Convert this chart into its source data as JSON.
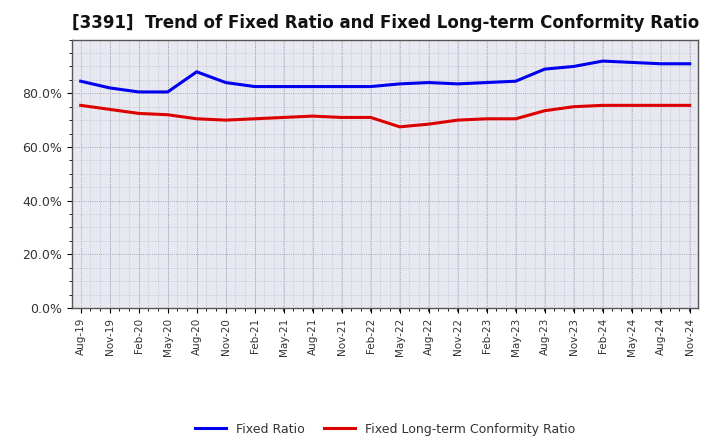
{
  "title": "[3391]  Trend of Fixed Ratio and Fixed Long-term Conformity Ratio",
  "x_labels": [
    "Aug-19",
    "Nov-19",
    "Feb-20",
    "May-20",
    "Aug-20",
    "Nov-20",
    "Feb-21",
    "May-21",
    "Aug-21",
    "Nov-21",
    "Feb-22",
    "May-22",
    "Aug-22",
    "Nov-22",
    "Feb-23",
    "May-23",
    "Aug-23",
    "Nov-23",
    "Feb-24",
    "May-24",
    "Aug-24",
    "Nov-24"
  ],
  "fixed_ratio": [
    84.5,
    82.0,
    80.5,
    80.5,
    88.0,
    84.0,
    82.5,
    82.5,
    82.5,
    82.5,
    82.5,
    83.5,
    84.0,
    83.5,
    84.0,
    84.5,
    89.0,
    90.0,
    92.0,
    91.5,
    91.0,
    91.0
  ],
  "fixed_lt_ratio": [
    75.5,
    74.0,
    72.5,
    72.0,
    70.5,
    70.0,
    70.5,
    71.0,
    71.5,
    71.0,
    71.0,
    67.5,
    68.5,
    70.0,
    70.5,
    70.5,
    73.5,
    75.0,
    75.5,
    75.5,
    75.5,
    75.5
  ],
  "fixed_ratio_color": "#0000EE",
  "fixed_lt_ratio_color": "#DD0000",
  "ylim": [
    0,
    100
  ],
  "yticks": [
    0,
    20,
    40,
    60,
    80
  ],
  "ytick_labels": [
    "0.0%",
    "20.0%",
    "40.0%",
    "60.0%",
    "80.0%"
  ],
  "background_color": "#FFFFFF",
  "plot_bg_color": "#E8E8F0",
  "grid_color": "#9090B0",
  "legend_fixed_ratio": "Fixed Ratio",
  "legend_fixed_lt_ratio": "Fixed Long-term Conformity Ratio",
  "title_fontsize": 12,
  "line_width": 2.2
}
